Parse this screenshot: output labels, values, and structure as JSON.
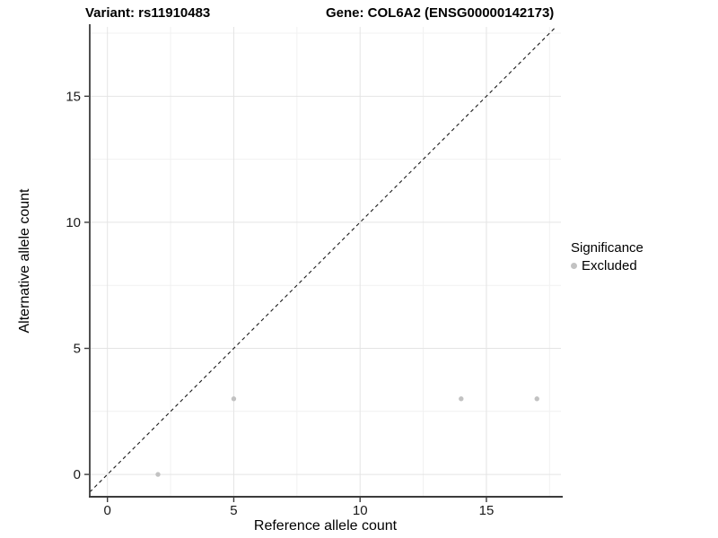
{
  "titles": {
    "variant": "Variant: rs11910483",
    "gene": "Gene: COL6A2 (ENSG00000142173)"
  },
  "chart_data": {
    "type": "scatter",
    "title_left": "Variant: rs11910483",
    "title_right": "Gene: COL6A2 (ENSG00000142173)",
    "xlabel": "Reference allele count",
    "ylabel": "Alternative allele count",
    "x_ticks": [
      0,
      5,
      10,
      15
    ],
    "y_ticks": [
      0,
      5,
      10,
      15
    ],
    "x_minor": [
      2.5,
      7.5,
      12.5,
      17.5
    ],
    "y_minor": [
      2.5,
      7.5,
      12.5,
      17.5
    ],
    "xlim": [
      -0.7,
      17.95
    ],
    "ylim": [
      -0.85,
      17.75
    ],
    "grid": true,
    "reference_line": {
      "type": "identity",
      "slope": 1,
      "intercept": 0,
      "style": "dashed",
      "color": "#1a1a1a"
    },
    "series": [
      {
        "name": "Excluded",
        "color": "#c2c2c2",
        "points": [
          {
            "x": 2,
            "y": 0,
            "significance": "Excluded"
          },
          {
            "x": 5,
            "y": 3,
            "significance": "Excluded"
          },
          {
            "x": 14,
            "y": 3,
            "significance": "Excluded"
          },
          {
            "x": 17,
            "y": 3,
            "significance": "Excluded"
          }
        ]
      }
    ],
    "legend": {
      "title": "Significance",
      "position": "right",
      "items": [
        {
          "label": "Excluded",
          "color": "#c2c2c2"
        }
      ]
    },
    "colors": {
      "grid_major": "#e4e4e4",
      "grid_minor": "#f1f1f1",
      "axis_line": "#3c3c3c",
      "tick_label": "#1a1a1a",
      "panel_bg": "#ffffff"
    }
  }
}
